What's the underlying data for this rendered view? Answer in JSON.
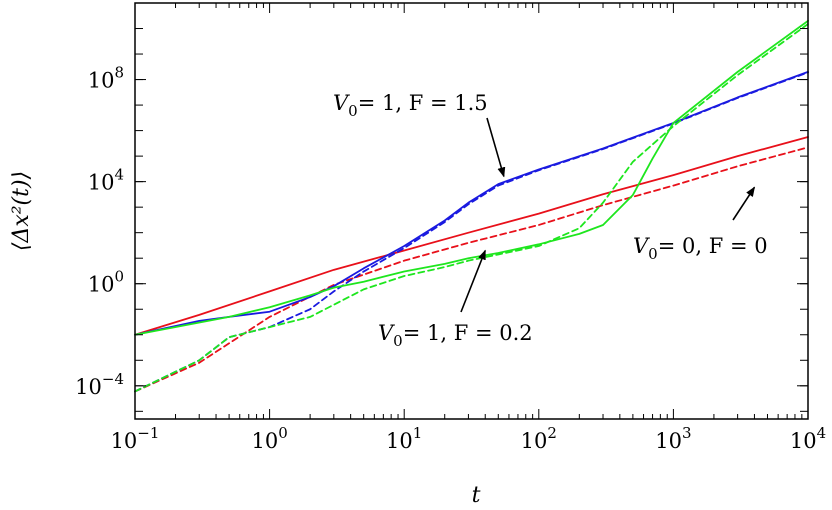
{
  "chart_data": {
    "type": "line",
    "xlabel": "t",
    "ylabel": "⟨Δx²(t)⟩",
    "xscale": "log",
    "yscale": "log",
    "xlim": [
      0.1,
      10000
    ],
    "ylim": [
      5e-06,
      100000000000
    ],
    "grid": false,
    "x_ticks": [
      {
        "value": 0.1,
        "base": "10",
        "exp": "−1"
      },
      {
        "value": 1,
        "base": "10",
        "exp": "0"
      },
      {
        "value": 10,
        "base": "10",
        "exp": "1"
      },
      {
        "value": 100,
        "base": "10",
        "exp": "2"
      },
      {
        "value": 1000,
        "base": "10",
        "exp": "3"
      },
      {
        "value": 10000,
        "base": "10",
        "exp": "4"
      }
    ],
    "y_ticks": [
      {
        "value": 0.0001,
        "base": "10",
        "exp": "−4"
      },
      {
        "value": 1,
        "base": "10",
        "exp": "0"
      },
      {
        "value": 10000,
        "base": "10",
        "exp": "4"
      },
      {
        "value": 100000000,
        "base": "10",
        "exp": "8"
      }
    ],
    "series": [
      {
        "color": "#e8101a",
        "style": "solid",
        "x": [
          0.1,
          0.3,
          1,
          3,
          10,
          30,
          100,
          300,
          1000,
          3000,
          10000
        ],
        "y": [
          0.01,
          0.06,
          0.5,
          3.5,
          20,
          100,
          560,
          3200,
          18000,
          100000,
          560000
        ]
      },
      {
        "color": "#e8101a",
        "style": "dashed",
        "x": [
          0.1,
          0.3,
          1,
          3,
          10,
          30,
          100,
          300,
          1000,
          3000,
          10000
        ],
        "y": [
          6e-05,
          0.0008,
          0.05,
          0.9,
          8,
          40,
          200,
          1200,
          7000,
          40000,
          220000
        ]
      },
      {
        "color": "#1a1ae0",
        "style": "solid",
        "x": [
          0.1,
          0.3,
          0.5,
          1,
          2,
          3,
          5,
          10,
          20,
          30,
          50,
          100,
          300,
          1000,
          3000,
          10000
        ],
        "y": [
          0.01,
          0.035,
          0.05,
          0.08,
          0.3,
          0.8,
          4,
          30,
          300,
          1500,
          8000,
          30000,
          200000,
          2000000,
          20000000,
          200000000
        ]
      },
      {
        "color": "#1a1ae0",
        "style": "dashed",
        "x": [
          0.1,
          0.3,
          0.5,
          1,
          2,
          3,
          5,
          10,
          20,
          30,
          50,
          100,
          300,
          1000,
          3000,
          10000
        ],
        "y": [
          6e-05,
          0.001,
          0.008,
          0.02,
          0.1,
          0.5,
          3,
          25,
          260,
          1300,
          7000,
          28000,
          190000,
          1900000,
          19000000,
          190000000
        ]
      },
      {
        "color": "#1ee61e",
        "style": "solid",
        "x": [
          0.1,
          0.5,
          1,
          2,
          3,
          5,
          10,
          20,
          30,
          50,
          100,
          200,
          300,
          500,
          700,
          1000,
          3000,
          10000
        ],
        "y": [
          0.01,
          0.05,
          0.12,
          0.35,
          0.7,
          1.2,
          3,
          6,
          10,
          16,
          35,
          90,
          200,
          3000,
          80000,
          2000000,
          200000000,
          20000000000
        ]
      },
      {
        "color": "#1ee61e",
        "style": "dashed",
        "x": [
          0.1,
          0.3,
          0.5,
          1,
          2,
          3,
          5,
          10,
          20,
          30,
          50,
          100,
          200,
          300,
          500,
          1000,
          3000,
          10000
        ],
        "y": [
          6e-05,
          0.001,
          0.008,
          0.02,
          0.05,
          0.15,
          0.6,
          2,
          4.5,
          8,
          14,
          30,
          150,
          1500,
          60000,
          1500000,
          150000000,
          15000000000
        ]
      }
    ],
    "annotations": [
      {
        "label_left": "V",
        "sub": "0",
        "label_right": "= 1, F = 1.5",
        "arrow_to": {
          "x": 55,
          "y": 16000
        }
      },
      {
        "label_left": "V",
        "sub": "0",
        "label_right": "= 0, F = 0",
        "arrow_to": {
          "x": 4000,
          "y": 6000
        }
      },
      {
        "label_left": "V",
        "sub": "0",
        "label_right": "= 1, F = 0.2",
        "arrow_to": {
          "x": 40,
          "y": 20
        }
      }
    ]
  }
}
